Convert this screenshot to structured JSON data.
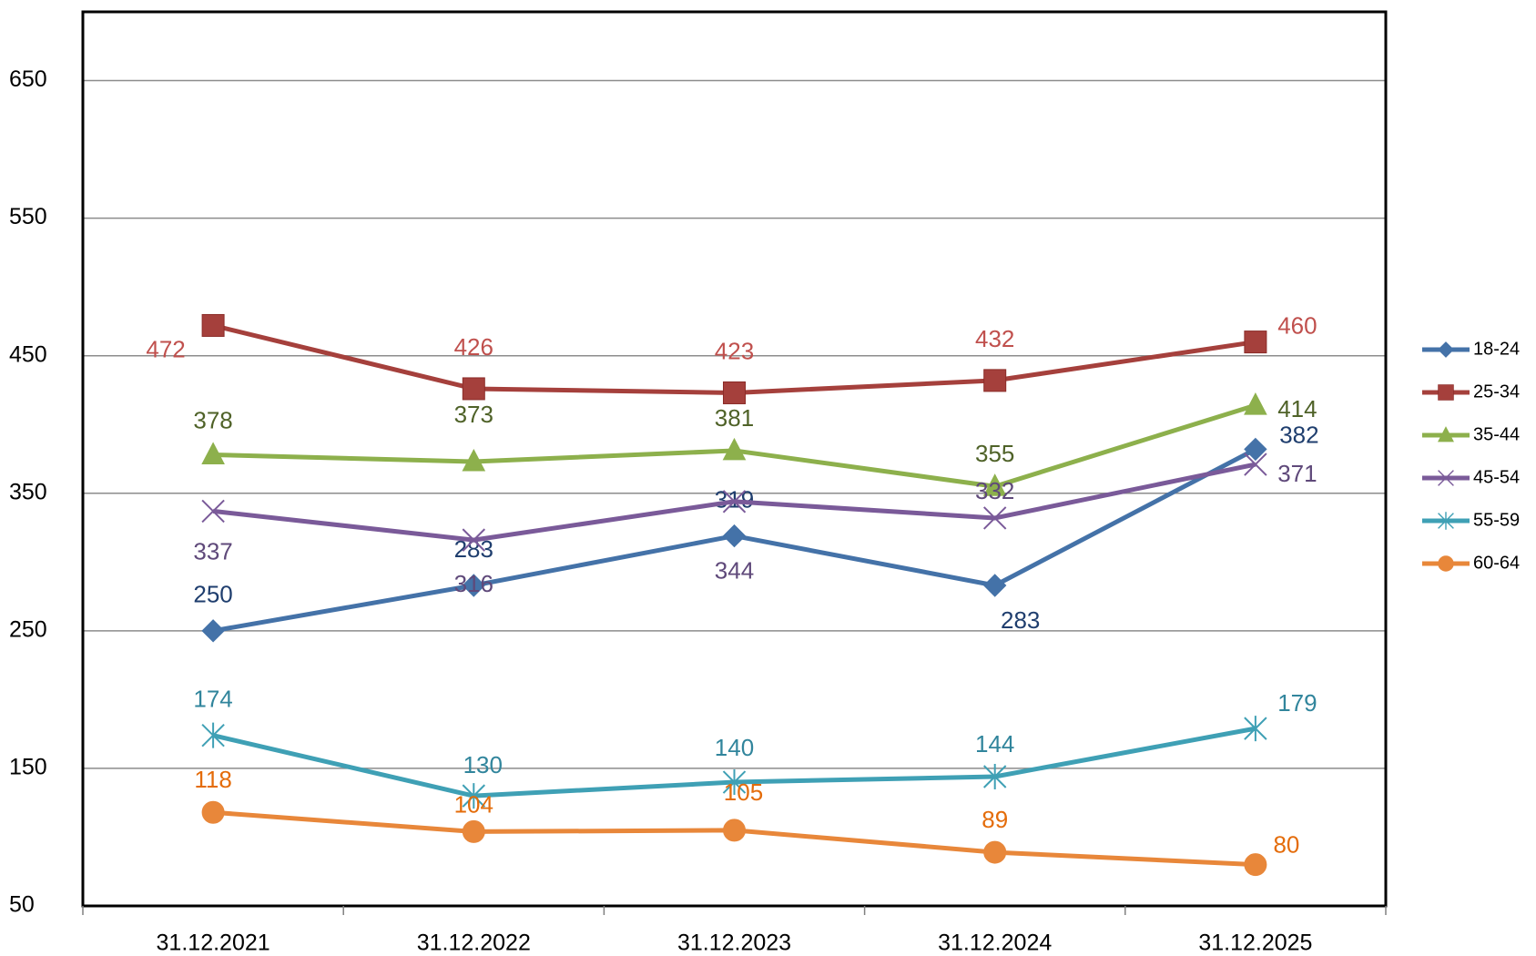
{
  "chart_data": {
    "type": "line",
    "categories": [
      "31.12.2021",
      "31.12.2022",
      "31.12.2023",
      "31.12.2024",
      "31.12.2025"
    ],
    "series": [
      {
        "name": "18-24",
        "color": "#4472a8",
        "label_color": "#1f3e6e",
        "marker": "diamond",
        "values": [
          250,
          283,
          319,
          283,
          382
        ]
      },
      {
        "name": "25-34",
        "color": "#a5403c",
        "label_color": "#c0504d",
        "marker": "square",
        "values": [
          472,
          426,
          423,
          432,
          460
        ]
      },
      {
        "name": "35-44",
        "color": "#8db04c",
        "label_color": "#4f6228",
        "marker": "triangle",
        "values": [
          378,
          373,
          381,
          355,
          414
        ]
      },
      {
        "name": "45-54",
        "color": "#7a5a99",
        "label_color": "#5f497a",
        "marker": "x",
        "values": [
          337,
          316,
          344,
          332,
          371
        ]
      },
      {
        "name": "55-59",
        "color": "#3fa0b5",
        "label_color": "#31859c",
        "marker": "star",
        "values": [
          174,
          130,
          140,
          144,
          179
        ]
      },
      {
        "name": "60-64",
        "color": "#e8873a",
        "label_color": "#e46c0a",
        "marker": "circle",
        "values": [
          118,
          104,
          105,
          89,
          80
        ]
      }
    ],
    "ylim": [
      50,
      700
    ],
    "yticks": [
      50,
      150,
      250,
      350,
      450,
      550,
      650
    ],
    "grid": true,
    "legend": "right"
  }
}
